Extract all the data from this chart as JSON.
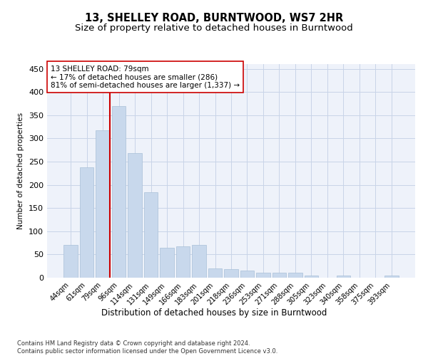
{
  "title": "13, SHELLEY ROAD, BURNTWOOD, WS7 2HR",
  "subtitle": "Size of property relative to detached houses in Burntwood",
  "xlabel": "Distribution of detached houses by size in Burntwood",
  "ylabel": "Number of detached properties",
  "categories": [
    "44sqm",
    "61sqm",
    "79sqm",
    "96sqm",
    "114sqm",
    "131sqm",
    "149sqm",
    "166sqm",
    "183sqm",
    "201sqm",
    "218sqm",
    "236sqm",
    "253sqm",
    "271sqm",
    "288sqm",
    "305sqm",
    "323sqm",
    "340sqm",
    "358sqm",
    "375sqm",
    "393sqm"
  ],
  "values": [
    70,
    237,
    318,
    370,
    268,
    184,
    65,
    68,
    70,
    20,
    18,
    15,
    10,
    10,
    10,
    5,
    0,
    4,
    0,
    0,
    4
  ],
  "bar_color": "#c8d8ec",
  "bar_edgecolor": "#a8c0d8",
  "vline_x_index": 2,
  "vline_color": "#cc0000",
  "annotation_text": "13 SHELLEY ROAD: 79sqm\n← 17% of detached houses are smaller (286)\n81% of semi-detached houses are larger (1,337) →",
  "annotation_box_color": "#ffffff",
  "annotation_box_edgecolor": "#cc0000",
  "ylim": [
    0,
    460
  ],
  "yticks": [
    0,
    50,
    100,
    150,
    200,
    250,
    300,
    350,
    400,
    450
  ],
  "grid_color": "#c8d4e8",
  "background_color": "#eef2fa",
  "footer_text": "Contains HM Land Registry data © Crown copyright and database right 2024.\nContains public sector information licensed under the Open Government Licence v3.0.",
  "title_fontsize": 10.5,
  "subtitle_fontsize": 9.5,
  "xlabel_fontsize": 8.5,
  "ylabel_fontsize": 7.5,
  "tick_fontsize": 7,
  "annotation_fontsize": 7.5,
  "footer_fontsize": 6
}
